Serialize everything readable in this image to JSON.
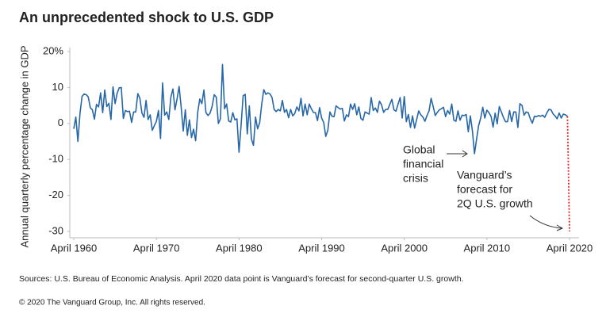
{
  "chart_data": {
    "type": "line",
    "title": "An unprecedented shock to U.S. GDP",
    "y_label": "Annual quarterly percentage change in GDP",
    "xlim": [
      1960.25,
      2020.25
    ],
    "xticks": [
      {
        "value": 1960.25,
        "label": "April 1960"
      },
      {
        "value": 1970.25,
        "label": "April 1970"
      },
      {
        "value": 1980.25,
        "label": "April 1980"
      },
      {
        "value": 1990.25,
        "label": "April 1990"
      },
      {
        "value": 2000.25,
        "label": "April 2000"
      },
      {
        "value": 2010.25,
        "label": "April 2010"
      },
      {
        "value": 2020.25,
        "label": "April 2020"
      }
    ],
    "ylim": [
      -30,
      20
    ],
    "yticks": [
      {
        "value": 20,
        "label": "20%"
      },
      10,
      0,
      -10,
      -20,
      -30
    ],
    "grid": false,
    "series": [
      {
        "color": "#2767a8",
        "style": "solid",
        "x": [
          1960.25,
          1960.5,
          1960.75,
          1961,
          1961.25,
          1961.5,
          1961.75,
          1962,
          1962.25,
          1962.5,
          1962.75,
          1963,
          1963.25,
          1963.5,
          1963.75,
          1964,
          1964.25,
          1964.5,
          1964.75,
          1965,
          1965.25,
          1965.5,
          1965.75,
          1966,
          1966.25,
          1966.5,
          1966.75,
          1967,
          1967.25,
          1967.5,
          1967.75,
          1968,
          1968.25,
          1968.5,
          1968.75,
          1969,
          1969.25,
          1969.5,
          1969.75,
          1970,
          1970.25,
          1970.5,
          1970.75,
          1971,
          1971.25,
          1971.5,
          1971.75,
          1972,
          1972.25,
          1972.5,
          1972.75,
          1973,
          1973.25,
          1973.5,
          1973.75,
          1974,
          1974.25,
          1974.5,
          1974.75,
          1975,
          1975.25,
          1975.5,
          1975.75,
          1976,
          1976.25,
          1976.5,
          1976.75,
          1977,
          1977.25,
          1977.5,
          1977.75,
          1978,
          1978.25,
          1978.5,
          1978.75,
          1979,
          1979.25,
          1979.5,
          1979.75,
          1980,
          1980.25,
          1980.5,
          1980.75,
          1981,
          1981.25,
          1981.5,
          1981.75,
          1982,
          1982.25,
          1982.5,
          1982.75,
          1983,
          1983.25,
          1983.5,
          1983.75,
          1984,
          1984.25,
          1984.5,
          1984.75,
          1985,
          1985.25,
          1985.5,
          1985.75,
          1986,
          1986.25,
          1986.5,
          1986.75,
          1987,
          1987.25,
          1987.5,
          1987.75,
          1988,
          1988.25,
          1988.5,
          1988.75,
          1989,
          1989.25,
          1989.5,
          1989.75,
          1990,
          1990.25,
          1990.5,
          1990.75,
          1991,
          1991.25,
          1991.5,
          1991.75,
          1992,
          1992.25,
          1992.5,
          1992.75,
          1993,
          1993.25,
          1993.5,
          1993.75,
          1994,
          1994.25,
          1994.5,
          1994.75,
          1995,
          1995.25,
          1995.5,
          1995.75,
          1996,
          1996.25,
          1996.5,
          1996.75,
          1997,
          1997.25,
          1997.5,
          1997.75,
          1998,
          1998.25,
          1998.5,
          1998.75,
          1999,
          1999.25,
          1999.5,
          1999.75,
          2000,
          2000.25,
          2000.5,
          2000.75,
          2001,
          2001.25,
          2001.5,
          2001.75,
          2002,
          2002.25,
          2002.5,
          2002.75,
          2003,
          2003.25,
          2003.5,
          2003.75,
          2004,
          2004.25,
          2004.5,
          2004.75,
          2005,
          2005.25,
          2005.5,
          2005.75,
          2006,
          2006.25,
          2006.5,
          2006.75,
          2007,
          2007.25,
          2007.5,
          2007.75,
          2008,
          2008.25,
          2008.5,
          2008.75,
          2009,
          2009.25,
          2009.5,
          2009.75,
          2010,
          2010.25,
          2010.5,
          2010.75,
          2011,
          2011.25,
          2011.5,
          2011.75,
          2012,
          2012.25,
          2012.5,
          2012.75,
          2013,
          2013.25,
          2013.5,
          2013.75,
          2014,
          2014.25,
          2014.5,
          2014.75,
          2015,
          2015.25,
          2015.5,
          2015.75,
          2016,
          2016.25,
          2016.5,
          2016.75,
          2017,
          2017.25,
          2017.5,
          2017.75,
          2018,
          2018.25,
          2018.5,
          2018.75,
          2019,
          2019.25,
          2019.5,
          2019.75,
          2020
        ],
        "values": [
          -1.5,
          1.8,
          -5.0,
          2.7,
          7.5,
          8.2,
          8.0,
          7.4,
          4.4,
          3.8,
          1.2,
          5.3,
          4.6,
          8.5,
          3.0,
          9.3,
          4.7,
          5.6,
          1.1,
          10.2,
          5.5,
          8.4,
          9.9,
          10.0,
          1.4,
          3.6,
          3.3,
          3.4,
          0.3,
          3.2,
          3.2,
          8.3,
          7.0,
          2.9,
          1.7,
          6.4,
          1.1,
          2.4,
          -1.9,
          -0.6,
          0.6,
          3.6,
          -4.2,
          11.3,
          2.3,
          3.2,
          1.1,
          7.3,
          9.6,
          3.8,
          6.8,
          10.3,
          4.5,
          -2.1,
          3.8,
          -3.3,
          1.0,
          -3.9,
          -1.6,
          -4.8,
          3.1,
          6.8,
          5.5,
          9.3,
          3.0,
          2.2,
          2.9,
          4.8,
          8.0,
          7.3,
          0.0,
          1.3,
          16.4,
          4.1,
          5.4,
          0.7,
          0.4,
          3.0,
          1.0,
          1.3,
          -8.0,
          -0.5,
          7.7,
          8.1,
          -2.9,
          4.9,
          -4.3,
          -6.1,
          1.8,
          -1.5,
          0.2,
          5.4,
          9.4,
          8.1,
          8.5,
          8.2,
          7.2,
          3.9,
          3.3,
          3.9,
          3.5,
          6.4,
          3.1,
          3.9,
          1.6,
          3.9,
          2.1,
          2.8,
          4.6,
          3.5,
          7.0,
          2.1,
          5.4,
          2.4,
          5.4,
          4.1,
          3.1,
          3.0,
          0.8,
          4.4,
          1.5,
          0.3,
          -3.6,
          -1.9,
          3.2,
          2.0,
          1.9,
          4.9,
          4.4,
          4.0,
          4.2,
          0.7,
          2.4,
          1.9,
          5.4,
          3.9,
          5.5,
          2.4,
          4.6,
          1.4,
          0.9,
          3.2,
          2.9,
          2.6,
          7.2,
          3.6,
          4.3,
          3.1,
          6.2,
          5.2,
          3.1,
          3.9,
          3.9,
          5.3,
          6.7,
          3.8,
          3.4,
          5.4,
          7.2,
          1.5,
          7.5,
          0.5,
          2.5,
          -1.1,
          2.1,
          -1.3,
          1.1,
          3.5,
          2.4,
          1.8,
          0.6,
          2.2,
          3.5,
          7.0,
          4.7,
          2.2,
          3.1,
          3.8,
          4.1,
          4.5,
          1.9,
          3.6,
          2.6,
          5.4,
          0.9,
          0.6,
          3.5,
          0.9,
          2.3,
          2.2,
          2.5,
          -2.3,
          2.1,
          -2.1,
          -8.4,
          -4.4,
          -0.6,
          1.5,
          4.5,
          1.5,
          3.7,
          3.0,
          2.0,
          -1.0,
          2.9,
          -0.1,
          4.7,
          3.2,
          1.7,
          0.5,
          0.5,
          3.6,
          0.5,
          3.2,
          3.2,
          -1.1,
          5.5,
          5.0,
          2.3,
          3.2,
          3.0,
          1.3,
          0.1,
          2.0,
          1.9,
          2.2,
          2.0,
          2.3,
          1.7,
          2.9,
          3.9,
          3.8,
          2.7,
          2.1,
          1.3,
          2.9,
          1.5,
          2.6,
          2.4,
          2.0
        ]
      },
      {
        "color": "#e2261c",
        "style": "dotted",
        "x": [
          2020.25
        ],
        "values": [
          -30
        ]
      }
    ],
    "annotations": [
      {
        "lines": [
          "Global",
          "financial",
          "crisis"
        ]
      },
      {
        "lines": [
          "Vanguard’s",
          "forecast for",
          "2Q U.S. growth"
        ]
      }
    ],
    "source": "Sources: U.S. Bureau of Economic Analysis. April 2020 data point is Vanguard’s forecast for second-quarter U.S. growth.",
    "copyright": "© 2020 The Vanguard Group, Inc. All rights reserved."
  }
}
